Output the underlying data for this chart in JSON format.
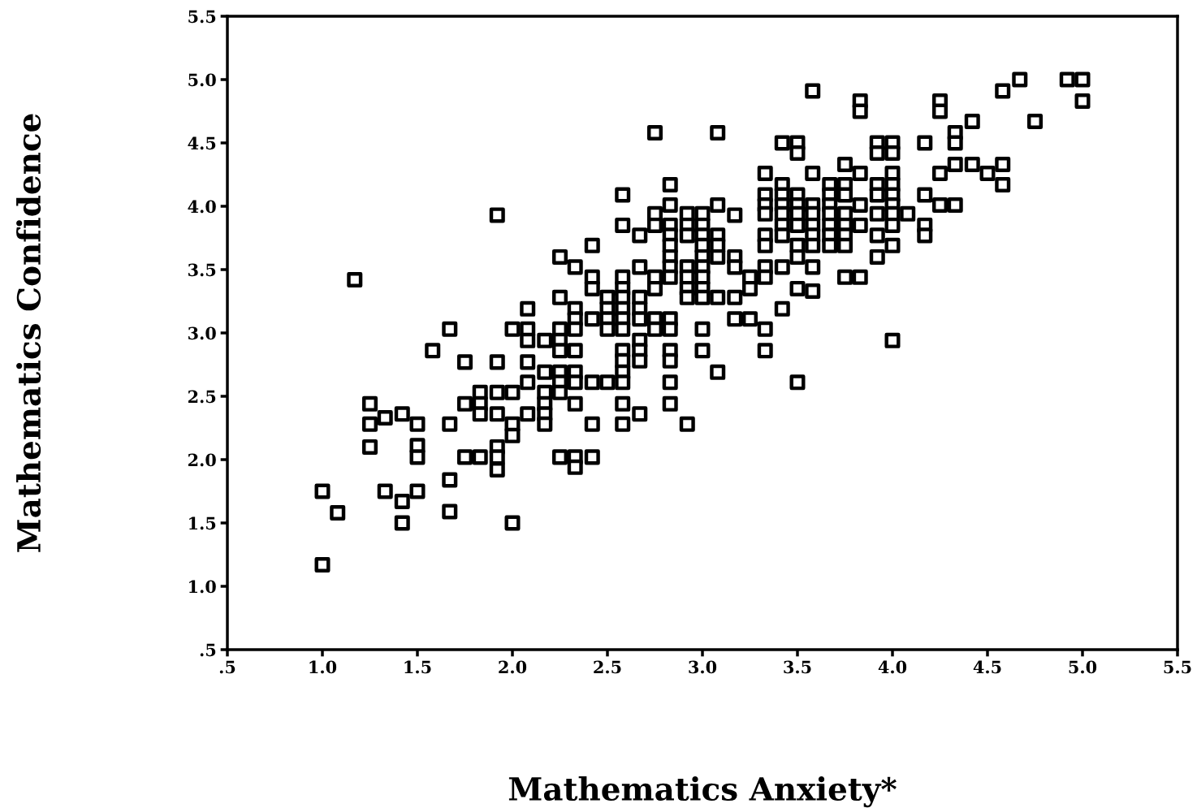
{
  "chart_data": {
    "type": "scatter",
    "xlabel": "Mathematics Anxiety*",
    "ylabel": "Mathematics Confidence",
    "marker": "square",
    "grid": false,
    "legend": false,
    "xlim": [
      0.5,
      5.5
    ],
    "ylim": [
      0.5,
      5.5
    ],
    "xticks": [
      {
        "value": 0.5,
        "label": ".5"
      },
      {
        "value": 1,
        "label": "1.0"
      },
      1.5,
      {
        "value": 2,
        "label": "2.0"
      },
      2.5,
      {
        "value": 3,
        "label": "3.0"
      },
      3.5,
      {
        "value": 4,
        "label": "4.0"
      },
      4.5,
      {
        "value": 5,
        "label": "5.0"
      },
      5.5
    ],
    "yticks": [
      {
        "value": 0.5,
        "label": ".5"
      },
      {
        "value": 1,
        "label": "1.0"
      },
      1.5,
      {
        "value": 2,
        "label": "2.0"
      },
      2.5,
      {
        "value": 3,
        "label": "3.0"
      },
      3.5,
      {
        "value": 4,
        "label": "4.0"
      },
      4.5,
      {
        "value": 5,
        "label": "5.0"
      },
      5.5
    ],
    "series": [
      {
        "color": "#000000",
        "x": [
          1.0,
          1.0,
          1.08,
          1.17,
          1.25,
          1.25,
          1.25,
          1.33,
          1.33,
          1.42,
          1.42,
          1.42,
          1.5,
          1.5,
          1.5,
          1.5,
          1.58,
          1.67,
          1.67,
          1.67,
          1.67,
          1.75,
          1.75,
          1.75,
          1.83,
          1.83,
          1.83,
          1.83,
          1.92,
          1.92,
          1.92,
          1.92,
          1.92,
          1.92,
          1.92,
          2.0,
          2.0,
          2.0,
          2.0,
          2.0,
          2.08,
          2.08,
          2.08,
          2.08,
          2.08,
          2.08,
          2.17,
          2.17,
          2.17,
          2.17,
          2.17,
          2.17,
          2.25,
          2.25,
          2.25,
          2.25,
          2.25,
          2.25,
          2.25,
          2.25,
          2.25,
          2.33,
          2.33,
          2.33,
          2.33,
          2.33,
          2.33,
          2.33,
          2.33,
          2.33,
          2.33,
          2.42,
          2.42,
          2.42,
          2.42,
          2.42,
          2.42,
          2.42,
          2.5,
          2.5,
          2.5,
          2.5,
          2.5,
          2.58,
          2.58,
          2.58,
          2.58,
          2.58,
          2.58,
          2.58,
          2.58,
          2.58,
          2.58,
          2.58,
          2.58,
          2.58,
          2.58,
          2.67,
          2.67,
          2.67,
          2.67,
          2.67,
          2.67,
          2.67,
          2.67,
          2.67,
          2.75,
          2.75,
          2.75,
          2.75,
          2.75,
          2.75,
          2.75,
          2.83,
          2.83,
          2.83,
          2.83,
          2.83,
          2.83,
          2.83,
          2.83,
          2.83,
          2.83,
          2.83,
          2.83,
          2.83,
          2.83,
          2.92,
          2.92,
          2.92,
          2.92,
          2.92,
          2.92,
          2.92,
          2.92,
          3.0,
          3.0,
          3.0,
          3.0,
          3.0,
          3.0,
          3.0,
          3.0,
          3.0,
          3.0,
          3.0,
          3.08,
          3.08,
          3.08,
          3.08,
          3.08,
          3.08,
          3.08,
          3.17,
          3.17,
          3.17,
          3.17,
          3.17,
          3.25,
          3.25,
          3.25,
          3.33,
          3.33,
          3.33,
          3.33,
          3.33,
          3.33,
          3.33,
          3.33,
          3.33,
          3.33,
          3.42,
          3.42,
          3.42,
          3.42,
          3.42,
          3.42,
          3.42,
          3.42,
          3.42,
          3.5,
          3.5,
          3.5,
          3.5,
          3.5,
          3.5,
          3.5,
          3.5,
          3.5,
          3.5,
          3.58,
          3.58,
          3.58,
          3.58,
          3.58,
          3.58,
          3.58,
          3.58,
          3.58,
          3.67,
          3.67,
          3.67,
          3.67,
          3.67,
          3.67,
          3.67,
          3.75,
          3.75,
          3.75,
          3.75,
          3.75,
          3.75,
          3.75,
          3.75,
          3.83,
          3.83,
          3.83,
          3.83,
          3.83,
          3.83,
          3.92,
          3.92,
          3.92,
          3.92,
          3.92,
          3.92,
          3.92,
          4.0,
          4.0,
          4.0,
          4.0,
          4.0,
          4.0,
          4.0,
          4.0,
          4.0,
          4.0,
          4.08,
          4.17,
          4.17,
          4.17,
          4.17,
          4.25,
          4.25,
          4.25,
          4.25,
          4.33,
          4.33,
          4.33,
          4.33,
          4.42,
          4.42,
          4.5,
          4.58,
          4.58,
          4.58,
          4.67,
          4.75,
          4.92,
          5.0,
          5.0
        ],
        "values": [
          1.75,
          1.17,
          1.58,
          3.42,
          2.44,
          2.28,
          2.1,
          2.33,
          1.75,
          2.36,
          1.67,
          1.5,
          2.28,
          2.11,
          2.02,
          1.75,
          2.86,
          3.03,
          2.28,
          1.84,
          1.59,
          2.77,
          2.44,
          2.02,
          2.53,
          2.44,
          2.36,
          2.02,
          3.93,
          2.77,
          2.53,
          2.36,
          2.1,
          2.02,
          1.92,
          3.03,
          2.53,
          2.28,
          2.19,
          1.5,
          3.19,
          3.03,
          2.94,
          2.77,
          2.61,
          2.36,
          2.94,
          2.69,
          2.53,
          2.44,
          2.36,
          2.28,
          3.6,
          3.28,
          3.03,
          2.94,
          2.86,
          2.69,
          2.61,
          2.53,
          2.02,
          3.52,
          3.19,
          3.11,
          3.03,
          2.86,
          2.69,
          2.61,
          2.44,
          2.02,
          1.94,
          3.69,
          3.44,
          3.35,
          3.11,
          2.61,
          2.28,
          2.02,
          3.28,
          3.19,
          3.11,
          3.03,
          2.61,
          4.09,
          3.85,
          3.44,
          3.35,
          3.28,
          3.19,
          3.11,
          3.03,
          2.86,
          2.78,
          2.69,
          2.61,
          2.44,
          2.28,
          3.77,
          3.52,
          3.28,
          3.19,
          3.11,
          2.94,
          2.86,
          2.78,
          2.36,
          4.58,
          3.94,
          3.85,
          3.44,
          3.35,
          3.11,
          3.03,
          4.17,
          4.01,
          3.85,
          3.77,
          3.69,
          3.6,
          3.52,
          3.44,
          3.11,
          3.03,
          2.86,
          2.78,
          2.61,
          2.44,
          3.94,
          3.85,
          3.77,
          3.52,
          3.44,
          3.35,
          3.28,
          2.28,
          3.94,
          3.85,
          3.77,
          3.69,
          3.6,
          3.52,
          3.44,
          3.35,
          3.28,
          3.03,
          2.86,
          4.58,
          4.01,
          3.77,
          3.69,
          3.6,
          3.28,
          2.69,
          3.93,
          3.6,
          3.52,
          3.28,
          3.11,
          3.44,
          3.35,
          3.11,
          4.26,
          4.09,
          4.01,
          3.94,
          3.77,
          3.69,
          3.52,
          3.44,
          3.03,
          2.86,
          4.5,
          4.17,
          4.09,
          4.01,
          3.94,
          3.85,
          3.77,
          3.52,
          3.19,
          4.5,
          4.42,
          4.09,
          4.01,
          3.94,
          3.85,
          3.69,
          3.6,
          3.35,
          2.61,
          4.91,
          4.26,
          4.01,
          3.94,
          3.85,
          3.77,
          3.69,
          3.52,
          3.33,
          4.17,
          4.09,
          4.01,
          3.94,
          3.85,
          3.77,
          3.69,
          4.33,
          4.17,
          4.09,
          3.94,
          3.85,
          3.77,
          3.69,
          3.44,
          4.83,
          4.75,
          4.26,
          4.01,
          3.85,
          3.44,
          4.5,
          4.42,
          4.17,
          4.09,
          3.94,
          3.77,
          3.6,
          4.5,
          4.42,
          4.26,
          4.17,
          4.09,
          4.01,
          3.94,
          3.85,
          3.69,
          2.94,
          3.94,
          4.5,
          4.09,
          3.85,
          3.77,
          4.83,
          4.75,
          4.26,
          4.01,
          4.58,
          4.5,
          4.33,
          4.01,
          4.67,
          4.33,
          4.26,
          4.91,
          4.33,
          4.17,
          5.0,
          4.67,
          5.0,
          5.0,
          4.83
        ]
      }
    ]
  }
}
